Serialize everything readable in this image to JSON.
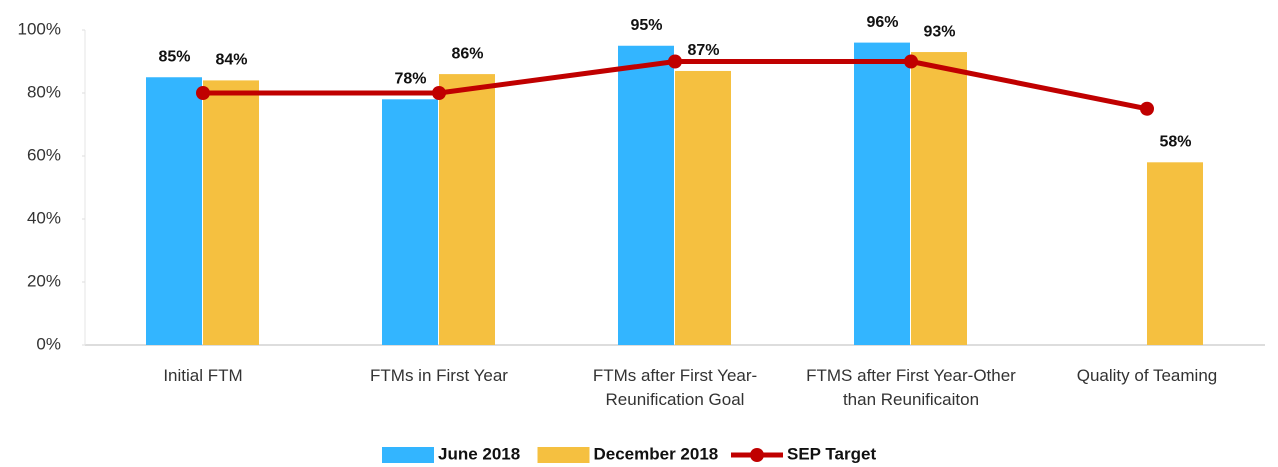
{
  "chart_data": {
    "type": "bar",
    "categories": [
      "Initial FTM",
      "FTMs in First Year",
      "FTMs after First Year-Reunification Goal",
      "FTMS after First Year-Other than Reunificaiton",
      "Quality of Teaming"
    ],
    "series": [
      {
        "name": "June 2018",
        "type": "bar",
        "color": "#33b5ff",
        "values": [
          85,
          78,
          95,
          96,
          null
        ],
        "value_labels": [
          "85%",
          "78%",
          "95%",
          "96%",
          null
        ]
      },
      {
        "name": "December 2018",
        "type": "bar",
        "color": "#f5c040",
        "values": [
          84,
          86,
          87,
          93,
          58
        ],
        "value_labels": [
          "84%",
          "86%",
          "87%",
          "93%",
          "58%"
        ]
      },
      {
        "name": "SEP Target",
        "type": "line",
        "color": "#c00000",
        "values": [
          80,
          80,
          90,
          90,
          75
        ]
      }
    ],
    "ylim": [
      0,
      100
    ],
    "yticks": [
      {
        "value": 0,
        "label": "0%"
      },
      {
        "value": 20,
        "label": "20%"
      },
      {
        "value": 40,
        "label": "40%"
      },
      {
        "value": 60,
        "label": "60%"
      },
      {
        "value": 80,
        "label": "80%"
      },
      {
        "value": 100,
        "label": "100%"
      }
    ],
    "grid": false,
    "legend": "bottom"
  }
}
